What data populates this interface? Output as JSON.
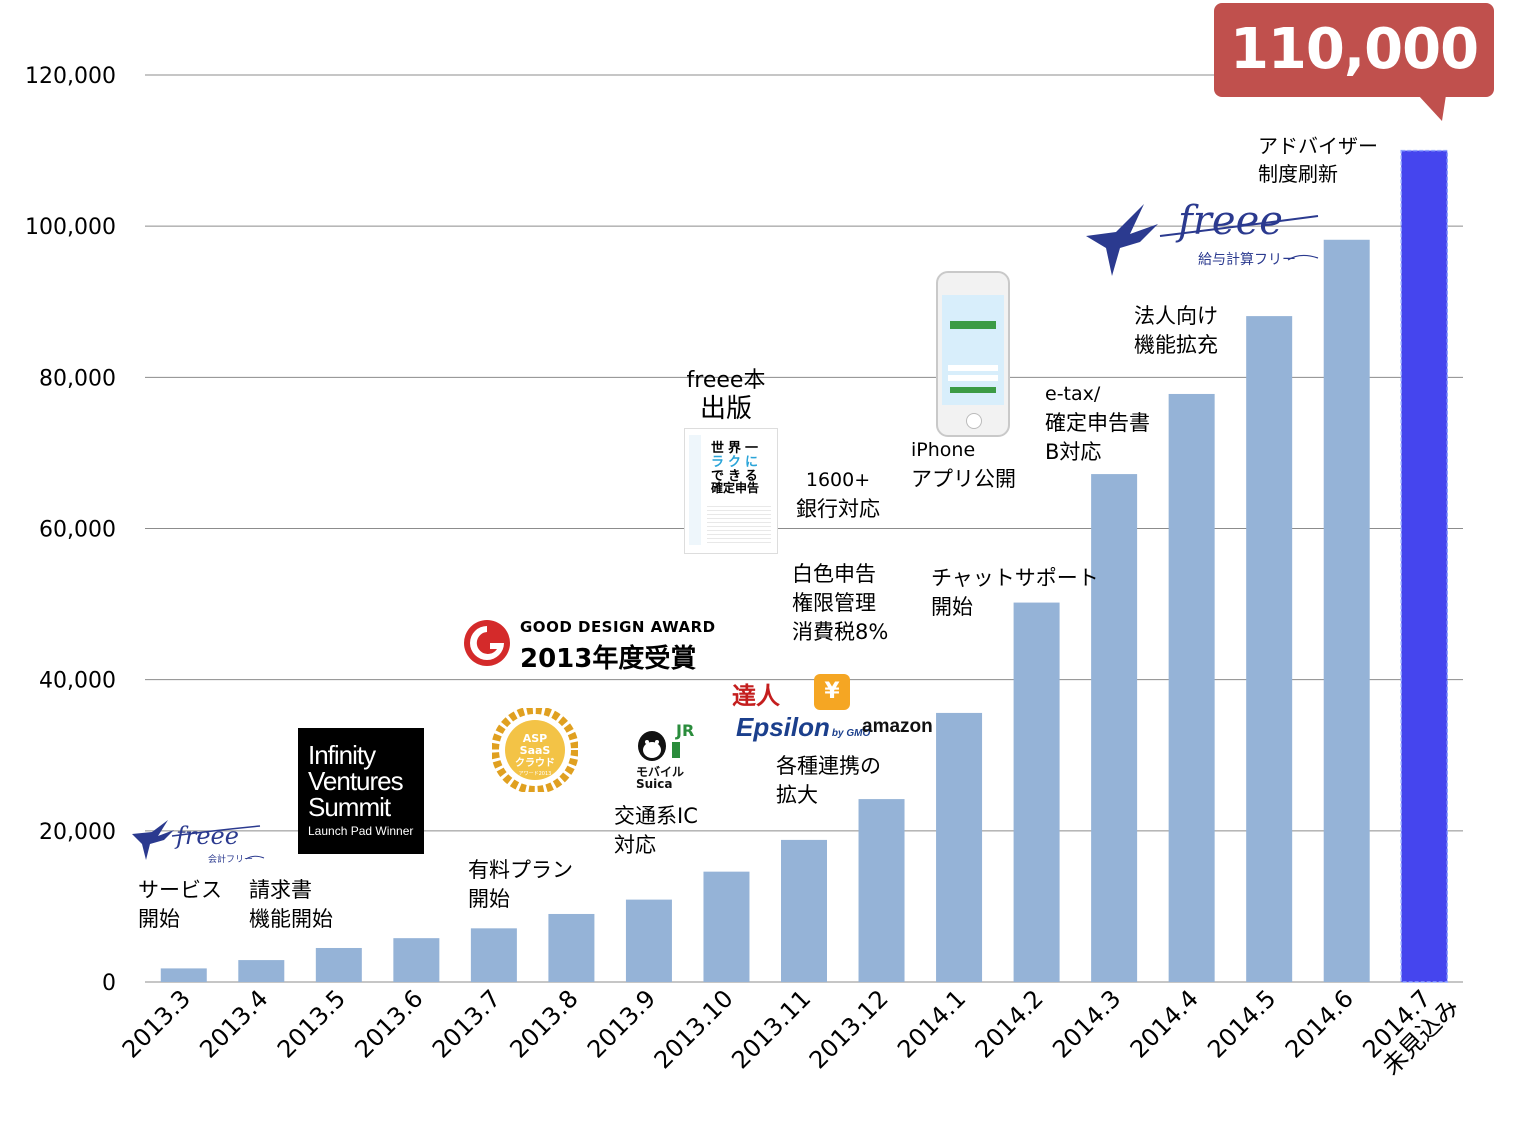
{
  "chart_data": {
    "type": "bar",
    "categories": [
      "2013.3",
      "2013.4",
      "2013.5",
      "2013.6",
      "2013.7",
      "2013.8",
      "2013.9",
      "2013.10",
      "2013.11",
      "2013.12",
      "2014.1",
      "2014.2",
      "2014.3",
      "2014.4",
      "2014.5",
      "2014.6",
      "2014.7\n未見込み"
    ],
    "values": [
      1800,
      2900,
      4500,
      5800,
      7100,
      9000,
      10900,
      14600,
      18800,
      24200,
      35600,
      50200,
      67200,
      77800,
      88100,
      98200,
      110000
    ],
    "projected_index": 16,
    "ylim": [
      0,
      120000
    ],
    "yticks": [
      "0",
      "20,000",
      "40,000",
      "60,000",
      "80,000",
      "100,000",
      "120,000"
    ],
    "ytick_values": [
      0,
      20000,
      40000,
      60000,
      80000,
      100000,
      120000
    ],
    "grid": true,
    "bar_color": "#95b3d7",
    "projected_color": "#4545ee",
    "title": "",
    "xlabel": "",
    "ylabel": ""
  },
  "callout": {
    "label": "110,000",
    "color": "#c0504d"
  },
  "annotations": {
    "service_start": [
      "サービス",
      "開始"
    ],
    "invoice": [
      "請求書",
      "機能開始"
    ],
    "paid_plan": [
      "有料プラン",
      "開始"
    ],
    "ic": [
      "交通系IC",
      "対応"
    ],
    "integrations": [
      "各種連携の",
      "拡大"
    ],
    "book": [
      "freee本",
      "出版"
    ],
    "banks": [
      "1600+",
      "銀行対応"
    ],
    "blue_return": [
      "白色申告",
      "権限管理",
      "消費税8%"
    ],
    "chat": [
      "チャットサポート",
      "開始"
    ],
    "iphone": [
      "iPhone",
      "アプリ公開"
    ],
    "etax": [
      "e-tax/",
      "確定申告書",
      "B対応"
    ],
    "corporate": [
      "法人向け",
      "機能拡充"
    ],
    "advisor": [
      "アドバイザー",
      "制度刷新"
    ]
  },
  "logos": {
    "freee_accounting": {
      "word": "freee",
      "sub": "会計フリー"
    },
    "freee_payroll": {
      "word": "freee",
      "sub": "給与計算フリー"
    },
    "ivs": {
      "line1": "Infinity",
      "line2": "Ventures",
      "line3": "Summit",
      "line4": "Launch Pad Winner"
    },
    "gda": {
      "line1": "GOOD DESIGN AWARD",
      "line2": "2013年度受賞"
    },
    "asp": {
      "line1": "ASP",
      "line2": "SaaS",
      "line3": "クラウド",
      "line4": "アワード2013"
    },
    "suica": {
      "line1": "モバイル",
      "line2": "Suica",
      "jr": "JR"
    },
    "tatsujin": {
      "text": "達人"
    },
    "epsilon": {
      "text": "Epsilon",
      "sub": "by GMO"
    },
    "amazon": {
      "text": "amazon"
    },
    "yen": {
      "text": "¥"
    },
    "book": {
      "line1": "世界一",
      "line2": "ラクに",
      "line3": "できる",
      "line4": "確定申告"
    }
  },
  "icons": [
    "swallow-icon",
    "iphone-icon",
    "book-icon",
    "gda-emblem-icon",
    "laurel-icon",
    "penguin-icon"
  ]
}
